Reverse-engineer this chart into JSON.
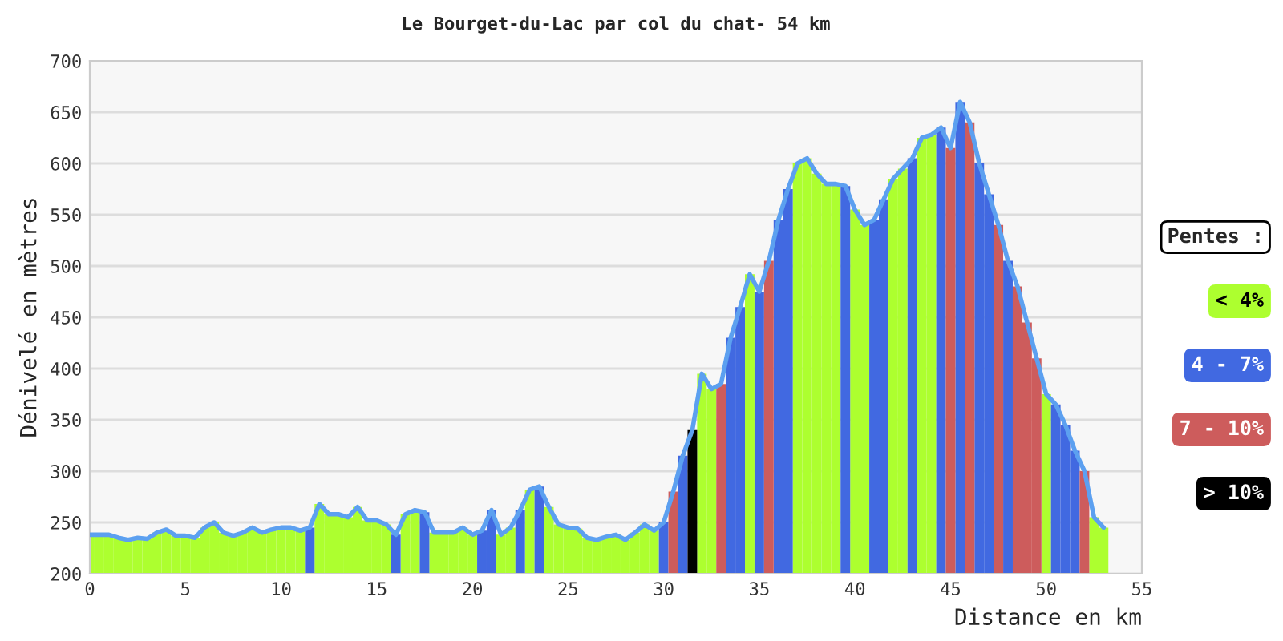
{
  "chart_data": {
    "type": "bar",
    "title": "Le Bourget-du-Lac par col du chat- 54 km",
    "xlabel": "Distance en km",
    "ylabel": "Dénivelé en mètres",
    "legend_title": "Pentes :",
    "xlim": [
      0,
      55
    ],
    "xticks": [
      0,
      5,
      10,
      15,
      20,
      25,
      30,
      35,
      40,
      45,
      50,
      55
    ],
    "ylim": [
      200,
      700
    ],
    "yticks": [
      200,
      250,
      300,
      350,
      400,
      450,
      500,
      550,
      600,
      650,
      700
    ],
    "grid": "y",
    "legend": "right",
    "series": [
      {
        "name": "< 4%",
        "color": "#adff2f",
        "x": [
          0,
          0.5,
          1,
          1.5,
          2,
          2.5,
          3,
          3.5,
          4,
          4.5,
          5,
          5.5,
          6,
          6.5,
          7,
          7.5,
          8,
          8.5,
          9,
          9.5,
          10,
          10.5,
          11,
          12,
          12.5,
          13,
          13.5,
          14,
          14.5,
          15,
          15.5,
          16.5,
          17,
          18,
          18.5,
          19,
          19.5,
          20,
          21.5,
          22,
          23,
          24,
          24.5,
          25,
          25.5,
          26,
          26.5,
          27,
          27.5,
          28,
          28.5,
          29,
          29.5,
          32,
          32.5,
          34.5,
          37,
          37.5,
          38,
          38.5,
          39,
          40,
          40.5,
          42,
          42.5,
          43.5,
          44,
          50,
          52.5,
          53
        ],
        "values": [
          238,
          238,
          238,
          235,
          233,
          235,
          234,
          240,
          243,
          237,
          237,
          235,
          245,
          250,
          240,
          237,
          240,
          245,
          240,
          243,
          245,
          245,
          242,
          268,
          258,
          258,
          255,
          265,
          252,
          252,
          248,
          258,
          262,
          240,
          240,
          240,
          245,
          238,
          238,
          245,
          282,
          265,
          248,
          245,
          244,
          235,
          233,
          236,
          238,
          233,
          240,
          248,
          242,
          395,
          380,
          492,
          600,
          605,
          590,
          580,
          580,
          555,
          540,
          585,
          595,
          625,
          628,
          375,
          255,
          245
        ]
      },
      {
        "name": "4 - 7%",
        "color": "#4169e1",
        "x": [
          11.5,
          16,
          17.5,
          20.5,
          21,
          22.5,
          23.5,
          30,
          31,
          33.5,
          34,
          35,
          36,
          36.5,
          39.5,
          41,
          41.5,
          43,
          44.5,
          45.5,
          46.5,
          47,
          48,
          50.5,
          51,
          51.5
        ],
        "values": [
          245,
          238,
          260,
          242,
          262,
          262,
          285,
          250,
          315,
          430,
          460,
          475,
          545,
          575,
          578,
          545,
          565,
          605,
          635,
          660,
          600,
          570,
          505,
          365,
          345,
          320
        ]
      },
      {
        "name": "7 - 10%",
        "color": "#cd5c5c",
        "x": [
          30.5,
          33,
          35.5,
          45,
          46,
          47.5,
          48.5,
          49,
          49.5,
          52
        ],
        "values": [
          280,
          385,
          505,
          615,
          640,
          540,
          480,
          445,
          410,
          300
        ]
      },
      {
        "name": "> 10%",
        "color": "#000000",
        "x": [
          31.5
        ],
        "values": [
          340
        ]
      },
      {
        "type": "line",
        "color": "#5ca0f0",
        "x": [
          0,
          0.5,
          1,
          1.5,
          2,
          2.5,
          3,
          3.5,
          4,
          4.5,
          5,
          5.5,
          6,
          6.5,
          7,
          7.5,
          8,
          8.5,
          9,
          9.5,
          10,
          10.5,
          11,
          11.5,
          12,
          12.5,
          13,
          13.5,
          14,
          14.5,
          15,
          15.5,
          16,
          16.5,
          17,
          17.5,
          18,
          18.5,
          19,
          19.5,
          20,
          20.5,
          21,
          21.5,
          22,
          22.5,
          23,
          23.5,
          24,
          24.5,
          25,
          25.5,
          26,
          26.5,
          27,
          27.5,
          28,
          28.5,
          29,
          29.5,
          30,
          30.5,
          31,
          31.5,
          32,
          32.5,
          33,
          33.5,
          34,
          34.5,
          35,
          35.5,
          36,
          36.5,
          37,
          37.5,
          38,
          38.5,
          39,
          39.5,
          40,
          40.5,
          41,
          41.5,
          42,
          42.5,
          43,
          43.5,
          44,
          44.5,
          45,
          45.5,
          46,
          46.5,
          47,
          47.5,
          48,
          48.5,
          49,
          49.5,
          50,
          50.5,
          51,
          51.5,
          52,
          52.5,
          53
        ],
        "values": [
          238,
          238,
          238,
          235,
          233,
          235,
          234,
          240,
          243,
          237,
          237,
          235,
          245,
          250,
          240,
          237,
          240,
          245,
          240,
          243,
          245,
          245,
          242,
          245,
          268,
          258,
          258,
          255,
          265,
          252,
          252,
          248,
          238,
          258,
          262,
          260,
          240,
          240,
          240,
          245,
          238,
          242,
          262,
          238,
          245,
          262,
          282,
          285,
          265,
          248,
          245,
          244,
          235,
          233,
          236,
          238,
          233,
          240,
          248,
          242,
          250,
          280,
          315,
          340,
          395,
          380,
          385,
          430,
          460,
          492,
          475,
          505,
          545,
          575,
          600,
          605,
          590,
          580,
          580,
          578,
          555,
          540,
          545,
          565,
          585,
          595,
          605,
          625,
          628,
          635,
          615,
          660,
          640,
          600,
          570,
          540,
          505,
          480,
          445,
          410,
          375,
          365,
          345,
          320,
          300,
          255,
          245
        ]
      }
    ]
  }
}
